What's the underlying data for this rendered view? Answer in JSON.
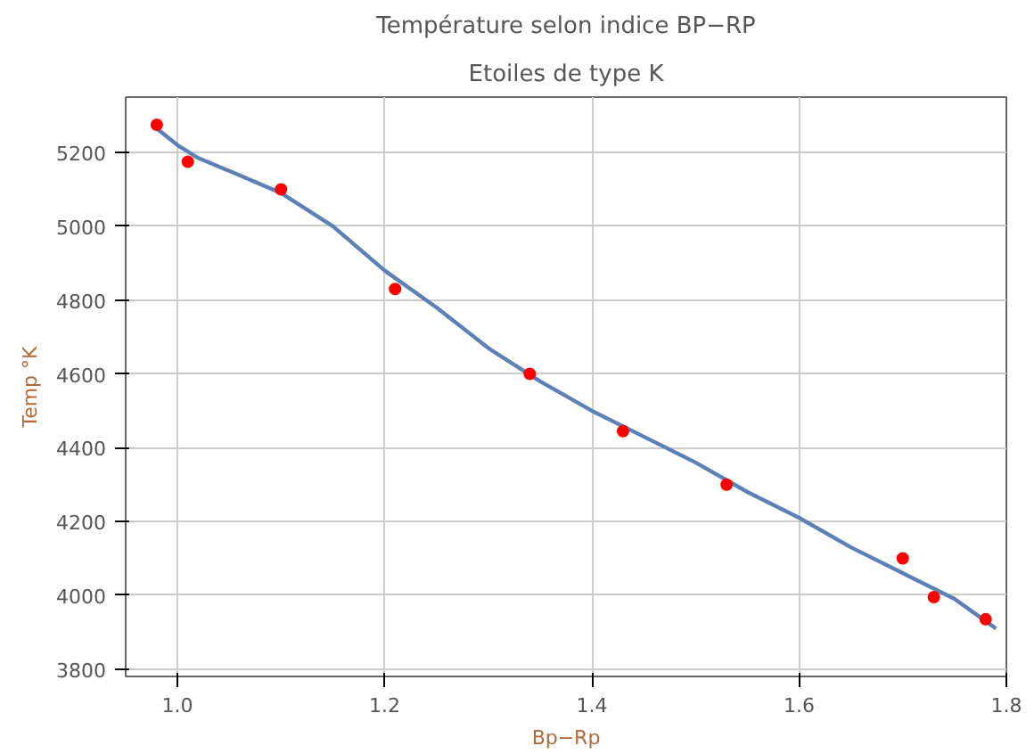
{
  "chart_data": {
    "type": "scatter",
    "title": "Température selon indice BP−RP",
    "subtitle": "Etoiles de type K",
    "xlabel": "Bp−Rp",
    "ylabel": "Temp °K",
    "xlim": [
      0.95,
      1.8
    ],
    "ylim": [
      3780,
      5350
    ],
    "xticks": [
      {
        "value": 1.0,
        "label": "1.0"
      },
      {
        "value": 1.2,
        "label": "1.2"
      },
      {
        "value": 1.4,
        "label": "1.4"
      },
      {
        "value": 1.6,
        "label": "1.6"
      },
      {
        "value": 1.8,
        "label": "1.8"
      }
    ],
    "yticks": [
      3800,
      4000,
      4200,
      4400,
      4600,
      4800,
      5000,
      5200
    ],
    "grid": true,
    "marker": "circle",
    "series": [
      {
        "type": "line",
        "color": "#5e81b5",
        "line_style": "solid",
        "marker": "none",
        "x": [
          0.98,
          1.0,
          1.02,
          1.05,
          1.1,
          1.15,
          1.2,
          1.25,
          1.3,
          1.35,
          1.4,
          1.45,
          1.5,
          1.55,
          1.6,
          1.65,
          1.7,
          1.75,
          1.77,
          1.79
        ],
        "values": [
          5265,
          5220,
          5185,
          5150,
          5090,
          5000,
          4880,
          4780,
          4670,
          4580,
          4500,
          4430,
          4360,
          4280,
          4210,
          4130,
          4060,
          3990,
          3950,
          3910
        ]
      },
      {
        "color": "#ff0000",
        "x": [
          0.98,
          1.01,
          1.1,
          1.21,
          1.34,
          1.43,
          1.53,
          1.7,
          1.73,
          1.78
        ],
        "values": [
          5275,
          5175,
          5100,
          4830,
          4600,
          4445,
          4300,
          4100,
          3995,
          3935
        ]
      }
    ]
  }
}
